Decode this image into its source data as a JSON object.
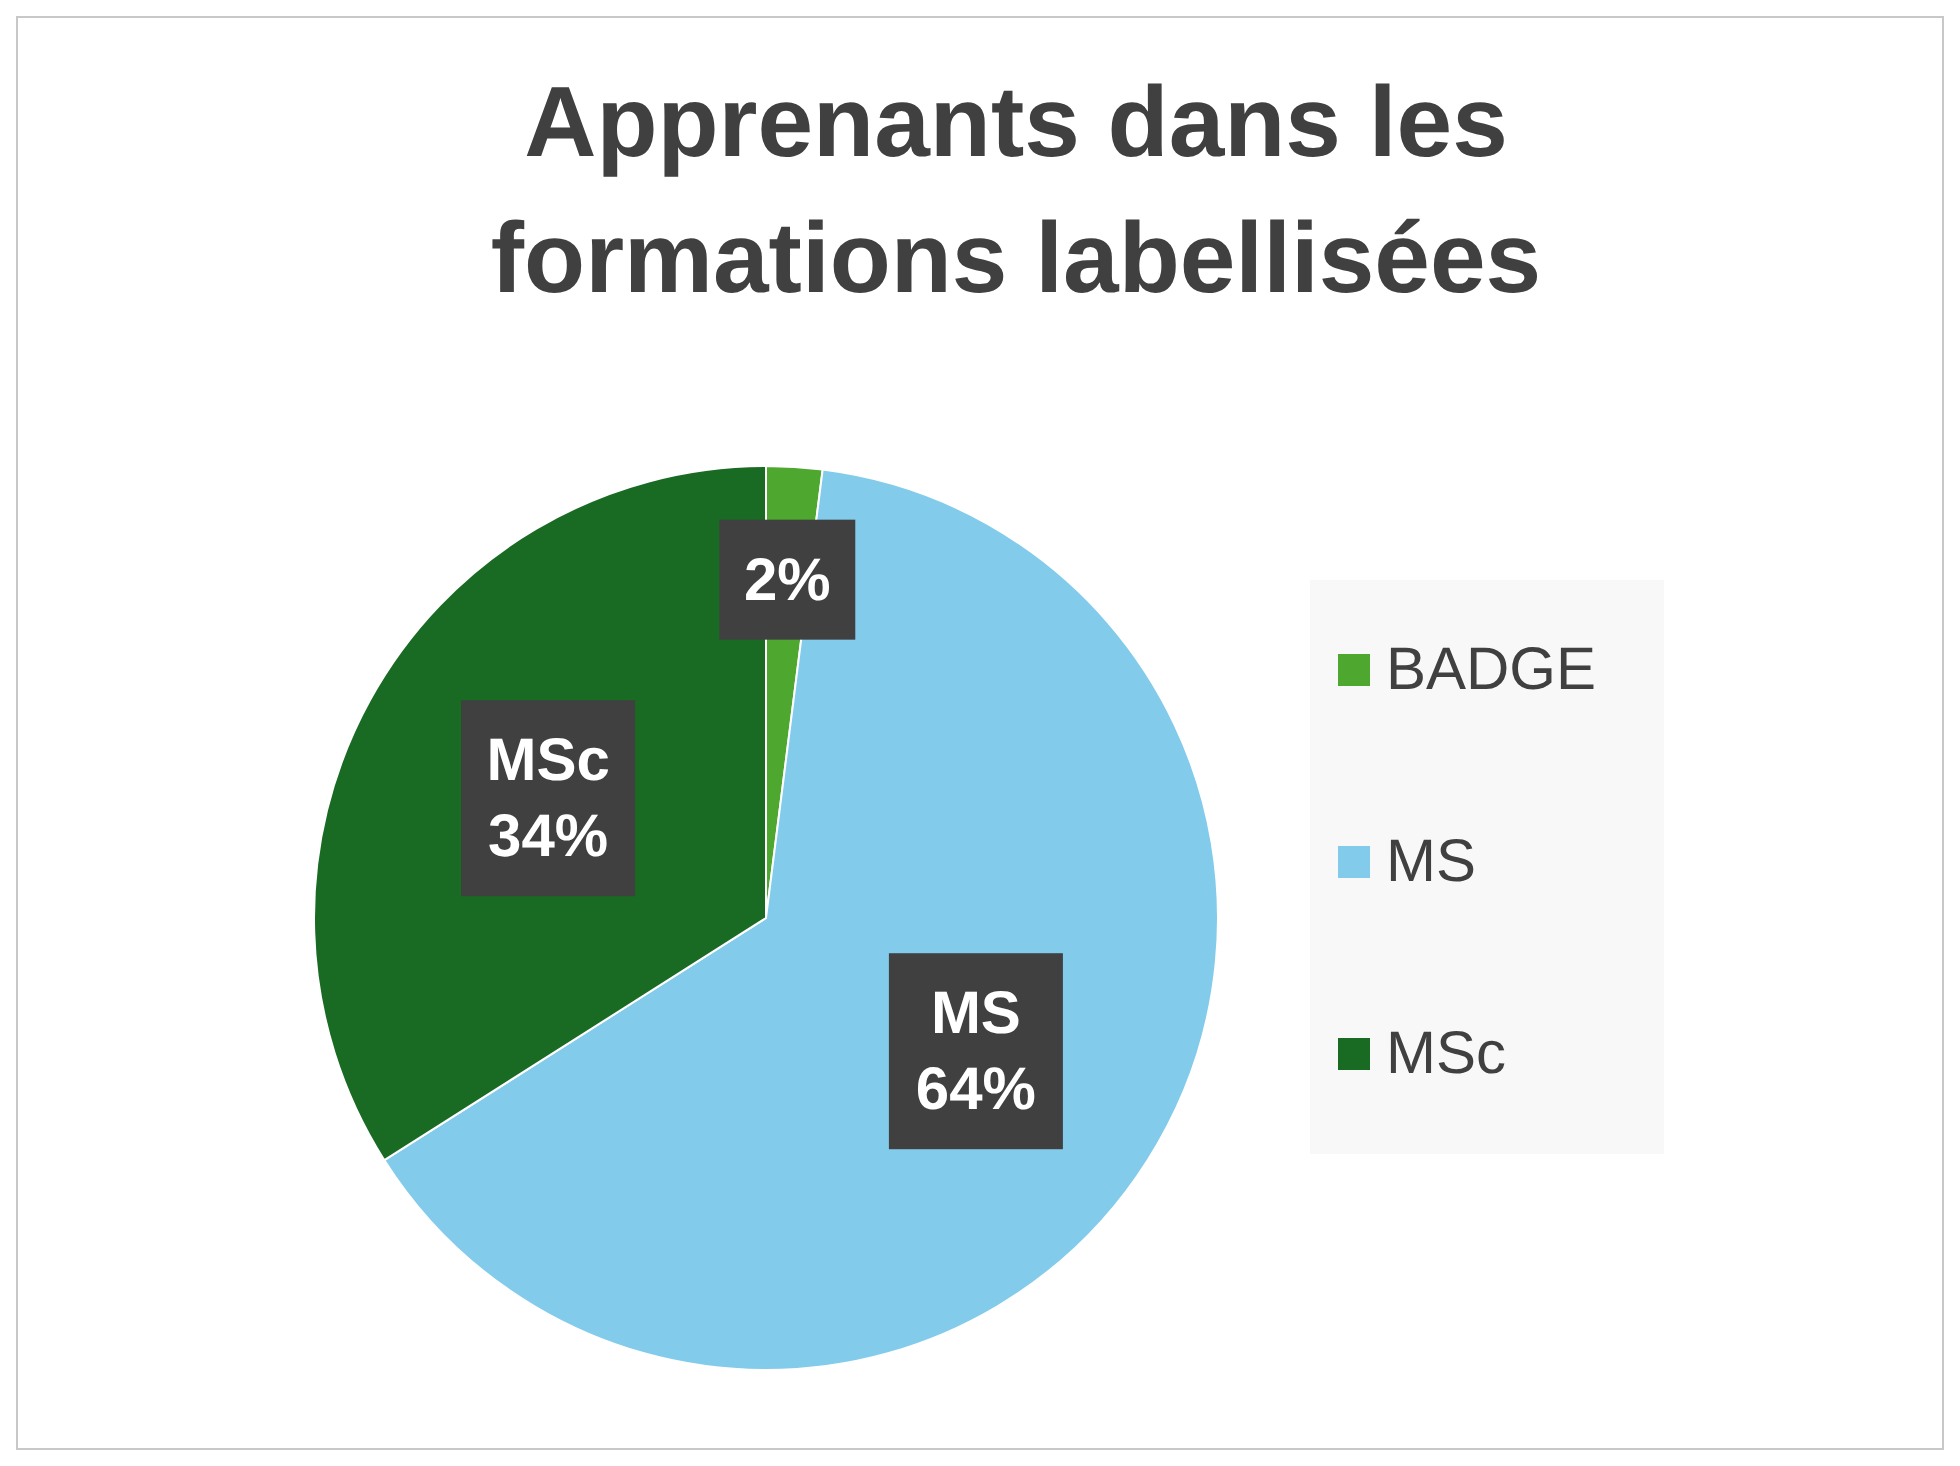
{
  "chart_data": {
    "type": "pie",
    "title": "Apprenants dans les formations labellisées",
    "categories": [
      "BADGE",
      "MS",
      "MSc"
    ],
    "values": [
      2,
      64,
      34
    ],
    "colors": [
      "#4ea72e",
      "#83cbeb",
      "#196b24"
    ],
    "value_labels": [
      "2%",
      "MS\n64%",
      "MSc\n34%"
    ],
    "legend": "right"
  }
}
